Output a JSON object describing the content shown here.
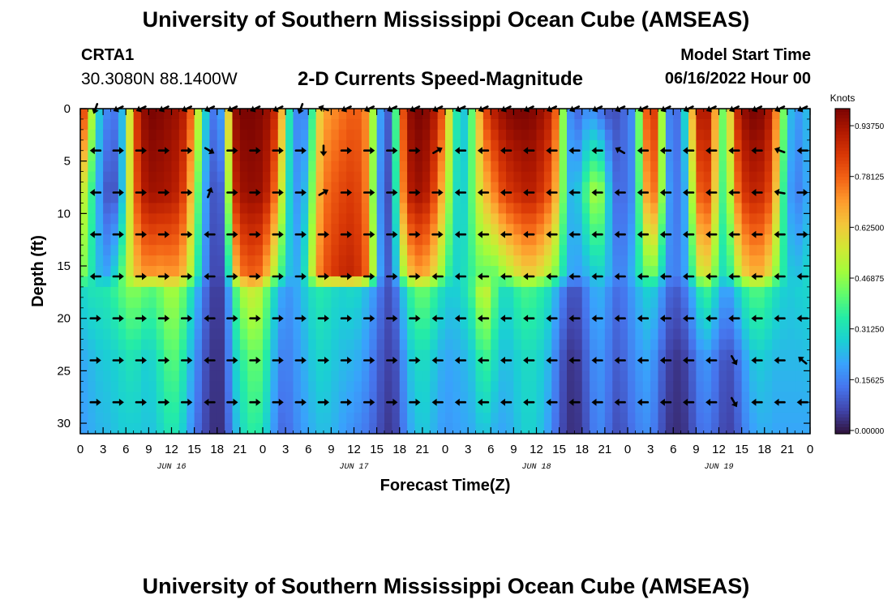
{
  "header": {
    "title": "University of Southern Mississippi Ocean Cube (AMSEAS)",
    "station_id": "CRTA1",
    "station_coords": "30.3080N  88.1400W",
    "plot_title": "2-D Currents Speed-Magnitude",
    "model_start_label": "Model Start Time",
    "model_start_value": "06/16/2022 Hour 00"
  },
  "footer": {
    "title": "University of Southern Mississippi Ocean Cube (AMSEAS)"
  },
  "chart_data": {
    "type": "heatmap",
    "title": "2-D Currents Speed-Magnitude",
    "xlabel": "Forecast Time(Z)",
    "ylabel": "Depth (ft)",
    "x_unit": "hours since model start",
    "xlim": [
      0,
      96
    ],
    "ylim": [
      31,
      0
    ],
    "x_ticks": [
      0,
      3,
      6,
      9,
      12,
      15,
      18,
      21,
      24,
      27,
      30,
      33,
      36,
      39,
      42,
      45,
      48,
      51,
      54,
      57,
      60,
      63,
      66,
      69,
      72,
      75,
      78,
      81,
      84,
      87,
      90,
      93,
      96
    ],
    "x_tick_labels": [
      "0",
      "3",
      "6",
      "9",
      "12",
      "15",
      "18",
      "21",
      "0",
      "3",
      "6",
      "9",
      "12",
      "15",
      "18",
      "21",
      "0",
      "3",
      "6",
      "9",
      "12",
      "15",
      "18",
      "21",
      "0",
      "3",
      "6",
      "9",
      "12",
      "15",
      "18",
      "21",
      "0"
    ],
    "y_ticks": [
      0,
      5,
      10,
      15,
      20,
      25,
      30
    ],
    "y_tick_labels": [
      "0",
      "5",
      "10",
      "15",
      "20",
      "25",
      "30"
    ],
    "day_labels": [
      {
        "hour": 12,
        "label": "JUN 16"
      },
      {
        "hour": 36,
        "label": "JUN 17"
      },
      {
        "hour": 60,
        "label": "JUN 18"
      },
      {
        "hour": 84,
        "label": "JUN 19"
      }
    ],
    "colorbar": {
      "label": "Knots",
      "min": 0.0,
      "max": 1.0,
      "ticks": [
        0.0,
        0.15625,
        0.3125,
        0.46875,
        0.625,
        0.78125,
        0.9375
      ],
      "tick_labels": [
        "0.00000",
        "0.15625",
        "0.31250",
        "0.46875",
        "0.62500",
        "0.78125",
        "0.93750"
      ],
      "colormap": [
        "#30123b",
        "#4145ab",
        "#4675ed",
        "#39a2fc",
        "#1bcfd4",
        "#24eca6",
        "#61fc6c",
        "#a4fc3b",
        "#d1e834",
        "#f3c63a",
        "#fe9b2d",
        "#f36315",
        "#d93806",
        "#b11901",
        "#7a0402"
      ]
    },
    "speed_profiles": {
      "depths_ft": [
        0,
        8,
        16,
        17,
        24,
        31
      ],
      "hours": [
        0,
        1,
        2,
        3,
        4,
        5,
        6,
        7,
        8,
        9,
        10,
        11,
        12,
        13,
        14,
        15,
        16,
        17,
        18,
        19,
        20,
        21,
        22,
        23,
        24,
        25,
        26,
        27,
        28,
        29,
        30,
        31,
        32,
        33,
        34,
        35,
        36,
        37,
        38,
        39,
        40,
        41,
        42,
        43,
        44,
        45,
        46,
        47,
        48,
        49,
        50,
        51,
        52,
        53,
        54,
        55,
        56,
        57,
        58,
        59,
        60,
        61,
        62,
        63,
        64,
        65,
        66,
        67,
        68,
        69,
        70,
        71,
        72,
        73,
        74,
        75,
        76,
        77,
        78,
        79,
        80,
        81,
        82,
        83,
        84,
        85,
        86,
        87,
        88,
        89,
        90,
        91,
        92,
        93,
        94,
        95,
        96
      ],
      "values": [
        [
          0.95,
          0.62,
          0.52,
          0.3,
          0.22,
          0.2
        ],
        [
          0.7,
          0.45,
          0.38,
          0.33,
          0.24,
          0.22
        ],
        [
          0.35,
          0.3,
          0.3,
          0.34,
          0.26,
          0.24
        ],
        [
          0.2,
          0.12,
          0.2,
          0.34,
          0.28,
          0.25
        ],
        [
          0.15,
          0.08,
          0.25,
          0.36,
          0.28,
          0.25
        ],
        [
          0.15,
          0.12,
          0.35,
          0.4,
          0.3,
          0.28
        ],
        [
          0.35,
          0.4,
          0.5,
          0.45,
          0.32,
          0.28
        ],
        [
          0.8,
          0.75,
          0.62,
          0.48,
          0.34,
          0.28
        ],
        [
          0.95,
          0.9,
          0.7,
          0.45,
          0.3,
          0.28
        ],
        [
          1.0,
          0.95,
          0.72,
          0.42,
          0.28,
          0.26
        ],
        [
          1.0,
          0.95,
          0.7,
          0.42,
          0.32,
          0.28
        ],
        [
          0.98,
          0.94,
          0.7,
          0.48,
          0.38,
          0.32
        ],
        [
          0.97,
          0.93,
          0.72,
          0.52,
          0.42,
          0.35
        ],
        [
          0.95,
          0.9,
          0.7,
          0.48,
          0.4,
          0.32
        ],
        [
          0.9,
          0.8,
          0.62,
          0.4,
          0.3,
          0.25
        ],
        [
          0.7,
          0.55,
          0.42,
          0.28,
          0.2,
          0.15
        ],
        [
          0.4,
          0.3,
          0.25,
          0.18,
          0.12,
          0.1
        ],
        [
          0.18,
          0.12,
          0.1,
          0.08,
          0.06,
          0.05
        ],
        [
          0.12,
          0.08,
          0.06,
          0.05,
          0.04,
          0.04
        ],
        [
          0.3,
          0.15,
          0.1,
          0.08,
          0.06,
          0.05
        ],
        [
          0.95,
          0.85,
          0.55,
          0.32,
          0.25,
          0.2
        ],
        [
          1.0,
          0.95,
          0.75,
          0.5,
          0.35,
          0.3
        ],
        [
          1.0,
          0.96,
          0.78,
          0.55,
          0.4,
          0.34
        ],
        [
          1.0,
          0.97,
          0.8,
          0.58,
          0.45,
          0.38
        ],
        [
          0.98,
          0.95,
          0.75,
          0.5,
          0.4,
          0.32
        ],
        [
          0.95,
          0.88,
          0.6,
          0.38,
          0.3,
          0.25
        ],
        [
          0.85,
          0.7,
          0.45,
          0.25,
          0.18,
          0.14
        ],
        [
          0.5,
          0.4,
          0.3,
          0.2,
          0.15,
          0.12
        ],
        [
          0.2,
          0.2,
          0.22,
          0.2,
          0.18,
          0.16
        ],
        [
          0.15,
          0.2,
          0.25,
          0.25,
          0.22,
          0.2
        ],
        [
          0.2,
          0.3,
          0.4,
          0.3,
          0.25,
          0.22
        ],
        [
          0.55,
          0.62,
          0.7,
          0.35,
          0.3,
          0.25
        ],
        [
          0.7,
          0.75,
          0.8,
          0.35,
          0.3,
          0.26
        ],
        [
          0.72,
          0.8,
          0.85,
          0.32,
          0.28,
          0.25
        ],
        [
          0.75,
          0.82,
          0.88,
          0.3,
          0.26,
          0.22
        ],
        [
          0.78,
          0.85,
          0.9,
          0.3,
          0.25,
          0.2
        ],
        [
          0.8,
          0.85,
          0.9,
          0.32,
          0.24,
          0.18
        ],
        [
          0.78,
          0.82,
          0.85,
          0.28,
          0.22,
          0.16
        ],
        [
          0.7,
          0.7,
          0.75,
          0.24,
          0.18,
          0.14
        ],
        [
          0.3,
          0.25,
          0.3,
          0.18,
          0.12,
          0.1
        ],
        [
          0.12,
          0.1,
          0.12,
          0.1,
          0.08,
          0.06
        ],
        [
          0.1,
          0.08,
          0.1,
          0.08,
          0.06,
          0.05
        ],
        [
          0.7,
          0.6,
          0.4,
          0.2,
          0.12,
          0.1
        ],
        [
          0.95,
          0.9,
          0.6,
          0.35,
          0.25,
          0.2
        ],
        [
          1.0,
          0.95,
          0.7,
          0.42,
          0.3,
          0.25
        ],
        [
          1.0,
          0.95,
          0.7,
          0.45,
          0.32,
          0.28
        ],
        [
          0.97,
          0.9,
          0.65,
          0.42,
          0.3,
          0.26
        ],
        [
          0.9,
          0.78,
          0.55,
          0.35,
          0.25,
          0.22
        ],
        [
          0.75,
          0.6,
          0.42,
          0.3,
          0.22,
          0.2
        ],
        [
          0.45,
          0.38,
          0.3,
          0.28,
          0.22,
          0.2
        ],
        [
          0.25,
          0.25,
          0.3,
          0.3,
          0.24,
          0.22
        ],
        [
          0.3,
          0.35,
          0.35,
          0.35,
          0.25,
          0.22
        ],
        [
          0.55,
          0.5,
          0.4,
          0.45,
          0.3,
          0.24
        ],
        [
          0.8,
          0.65,
          0.45,
          0.6,
          0.4,
          0.28
        ],
        [
          0.9,
          0.7,
          0.4,
          0.5,
          0.35,
          0.25
        ],
        [
          0.95,
          0.8,
          0.45,
          0.35,
          0.28,
          0.22
        ],
        [
          0.98,
          0.85,
          0.5,
          0.3,
          0.25,
          0.22
        ],
        [
          1.0,
          0.88,
          0.55,
          0.35,
          0.28,
          0.25
        ],
        [
          1.0,
          0.9,
          0.6,
          0.4,
          0.3,
          0.28
        ],
        [
          1.0,
          0.92,
          0.62,
          0.4,
          0.32,
          0.3
        ],
        [
          0.98,
          0.9,
          0.6,
          0.38,
          0.3,
          0.28
        ],
        [
          0.95,
          0.85,
          0.55,
          0.35,
          0.28,
          0.25
        ],
        [
          0.9,
          0.78,
          0.5,
          0.3,
          0.22,
          0.18
        ],
        [
          0.7,
          0.6,
          0.4,
          0.2,
          0.12,
          0.1
        ],
        [
          0.25,
          0.3,
          0.25,
          0.12,
          0.06,
          0.05
        ],
        [
          0.1,
          0.2,
          0.2,
          0.08,
          0.04,
          0.04
        ],
        [
          0.15,
          0.35,
          0.22,
          0.12,
          0.08,
          0.06
        ],
        [
          0.2,
          0.45,
          0.25,
          0.2,
          0.15,
          0.12
        ],
        [
          0.15,
          0.55,
          0.3,
          0.25,
          0.2,
          0.18
        ],
        [
          0.1,
          0.4,
          0.28,
          0.22,
          0.18,
          0.16
        ],
        [
          0.08,
          0.15,
          0.2,
          0.15,
          0.12,
          0.1
        ],
        [
          0.1,
          0.12,
          0.15,
          0.12,
          0.1,
          0.08
        ],
        [
          0.15,
          0.15,
          0.2,
          0.18,
          0.15,
          0.12
        ],
        [
          0.2,
          0.2,
          0.28,
          0.22,
          0.18,
          0.15
        ],
        [
          0.7,
          0.6,
          0.4,
          0.28,
          0.22,
          0.18
        ],
        [
          0.9,
          0.8,
          0.45,
          0.3,
          0.22,
          0.18
        ],
        [
          0.8,
          0.72,
          0.4,
          0.25,
          0.15,
          0.12
        ],
        [
          0.2,
          0.25,
          0.2,
          0.15,
          0.08,
          0.06
        ],
        [
          0.12,
          0.15,
          0.15,
          0.1,
          0.05,
          0.04
        ],
        [
          0.15,
          0.15,
          0.18,
          0.12,
          0.05,
          0.04
        ],
        [
          0.45,
          0.3,
          0.25,
          0.18,
          0.08,
          0.06
        ],
        [
          0.9,
          0.75,
          0.5,
          0.3,
          0.15,
          0.12
        ],
        [
          0.95,
          0.85,
          0.6,
          0.4,
          0.2,
          0.15
        ],
        [
          0.9,
          0.8,
          0.55,
          0.38,
          0.18,
          0.14
        ],
        [
          0.5,
          0.45,
          0.35,
          0.25,
          0.12,
          0.1
        ],
        [
          0.4,
          0.35,
          0.3,
          0.2,
          0.08,
          0.06
        ],
        [
          0.85,
          0.7,
          0.45,
          0.25,
          0.1,
          0.08
        ],
        [
          0.95,
          0.85,
          0.6,
          0.35,
          0.18,
          0.14
        ],
        [
          1.0,
          0.9,
          0.65,
          0.4,
          0.25,
          0.2
        ],
        [
          1.0,
          0.9,
          0.68,
          0.42,
          0.28,
          0.22
        ],
        [
          0.98,
          0.88,
          0.65,
          0.4,
          0.28,
          0.24
        ],
        [
          0.9,
          0.8,
          0.55,
          0.35,
          0.25,
          0.22
        ],
        [
          0.6,
          0.5,
          0.4,
          0.3,
          0.25,
          0.22
        ],
        [
          0.3,
          0.25,
          0.3,
          0.28,
          0.25,
          0.22
        ],
        [
          0.2,
          0.15,
          0.25,
          0.28,
          0.25,
          0.22
        ],
        [
          0.2,
          0.18,
          0.28,
          0.3,
          0.25,
          0.22
        ],
        [
          0.3,
          0.25,
          0.32,
          0.3,
          0.26,
          0.22
        ]
      ]
    },
    "vector_arrows": {
      "depths_ft": [
        0,
        4,
        8,
        12,
        16,
        20,
        24,
        28
      ],
      "hours": [
        2,
        5,
        8,
        11,
        14,
        17,
        20,
        23,
        26,
        29,
        32,
        35,
        38,
        41,
        44,
        47,
        50,
        53,
        56,
        59,
        62,
        65,
        68,
        71,
        74,
        77,
        80,
        83,
        86,
        89,
        92,
        95
      ],
      "directions_deg": [
        [
          200,
          245,
          245,
          245,
          245,
          245,
          245,
          245,
          245,
          200,
          290,
          245,
          245,
          245,
          245,
          245,
          245,
          245,
          245,
          245,
          245,
          245,
          245,
          245,
          245,
          245,
          245,
          245,
          245,
          245,
          245,
          245
        ],
        [
          270,
          90,
          90,
          90,
          90,
          120,
          90,
          90,
          90,
          90,
          180,
          90,
          90,
          90,
          90,
          60,
          270,
          270,
          270,
          270,
          270,
          270,
          270,
          300,
          270,
          270,
          270,
          270,
          270,
          270,
          290,
          270
        ],
        [
          270,
          90,
          90,
          90,
          90,
          20,
          90,
          90,
          90,
          90,
          60,
          90,
          90,
          90,
          90,
          90,
          270,
          270,
          270,
          270,
          270,
          270,
          270,
          270,
          270,
          270,
          270,
          270,
          270,
          270,
          280,
          90
        ],
        [
          270,
          90,
          90,
          90,
          90,
          270,
          90,
          90,
          90,
          90,
          90,
          90,
          90,
          90,
          90,
          90,
          270,
          270,
          270,
          270,
          270,
          270,
          270,
          270,
          270,
          270,
          270,
          270,
          270,
          270,
          270,
          90
        ],
        [
          270,
          90,
          90,
          90,
          90,
          270,
          90,
          90,
          90,
          90,
          90,
          90,
          90,
          90,
          90,
          270,
          270,
          270,
          270,
          270,
          270,
          270,
          270,
          270,
          270,
          270,
          270,
          270,
          270,
          270,
          270,
          270
        ],
        [
          90,
          90,
          90,
          90,
          90,
          270,
          90,
          90,
          90,
          90,
          90,
          90,
          90,
          90,
          90,
          270,
          270,
          270,
          270,
          270,
          270,
          270,
          270,
          270,
          270,
          270,
          270,
          270,
          270,
          270,
          270,
          270
        ],
        [
          90,
          90,
          90,
          90,
          90,
          270,
          90,
          90,
          90,
          90,
          90,
          90,
          90,
          90,
          90,
          270,
          270,
          270,
          270,
          270,
          270,
          270,
          270,
          270,
          270,
          270,
          270,
          270,
          150,
          270,
          270,
          310
        ],
        [
          90,
          90,
          90,
          90,
          90,
          270,
          90,
          90,
          90,
          90,
          90,
          90,
          90,
          90,
          90,
          270,
          270,
          270,
          270,
          270,
          270,
          270,
          270,
          270,
          270,
          270,
          270,
          270,
          150,
          270,
          270,
          270
        ]
      ]
    }
  }
}
